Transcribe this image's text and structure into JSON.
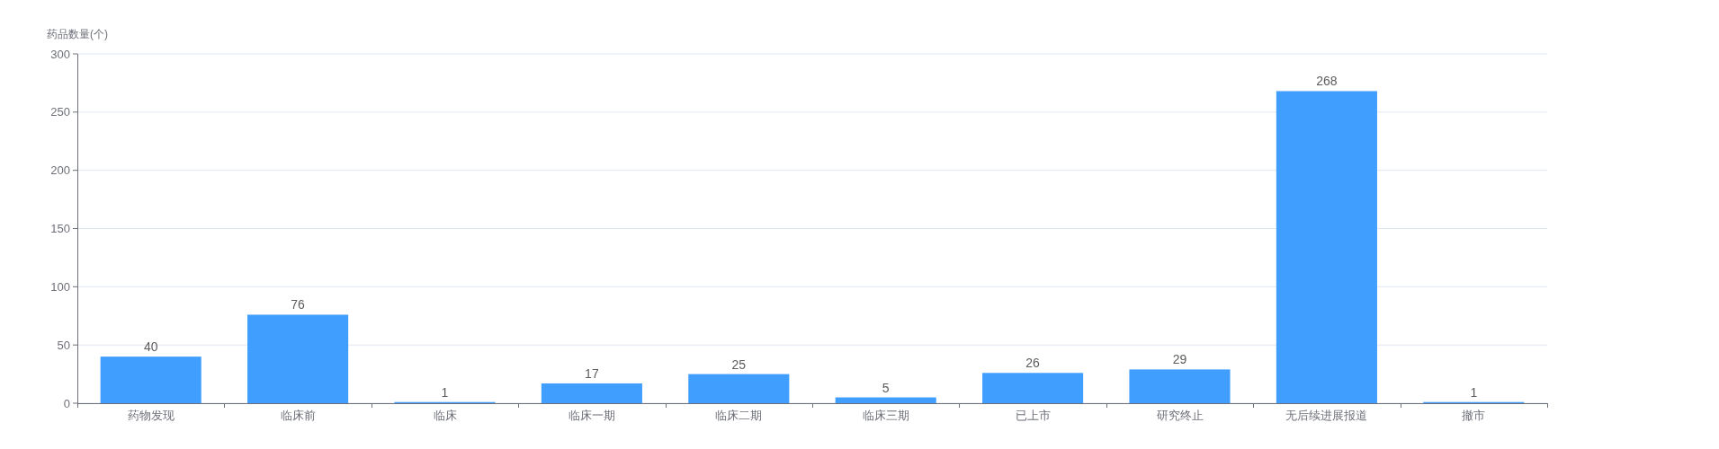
{
  "chart_data": {
    "type": "bar",
    "ylabel": "药品数量(个)",
    "categories": [
      "药物发现",
      "临床前",
      "临床",
      "临床一期",
      "临床二期",
      "临床三期",
      "已上市",
      "研究终止",
      "无后续进展报道",
      "撤市"
    ],
    "values": [
      40,
      76,
      1,
      17,
      25,
      5,
      26,
      29,
      268,
      1
    ],
    "color": "#409eff",
    "ylim": [
      0,
      300
    ],
    "yticks": [
      0,
      50,
      100,
      150,
      200,
      250,
      300
    ],
    "grid": "y",
    "data_labels": true
  }
}
